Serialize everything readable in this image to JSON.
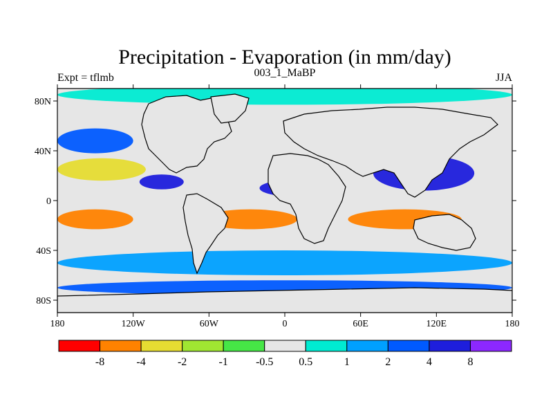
{
  "figure": {
    "title": "Precipitation - Evaporation (in mm/day)",
    "subtitle_left": "Expt = tflmb",
    "subtitle_center": "003_1_MaBP",
    "subtitle_right": "JJA"
  },
  "map": {
    "projection": "cylindrical equidistant",
    "lon_range": [
      -180,
      180
    ],
    "lat_range": [
      -90,
      90
    ],
    "y_ticks": [
      {
        "lat": 80,
        "label": "80N"
      },
      {
        "lat": 40,
        "label": "40N"
      },
      {
        "lat": 0,
        "label": "0"
      },
      {
        "lat": -40,
        "label": "40S"
      },
      {
        "lat": -80,
        "label": "80S"
      }
    ],
    "x_ticks": [
      {
        "lon": -180,
        "label": "180"
      },
      {
        "lon": -120,
        "label": "120W"
      },
      {
        "lon": -60,
        "label": "60W"
      },
      {
        "lon": 0,
        "label": "0"
      },
      {
        "lon": 60,
        "label": "60E"
      },
      {
        "lon": 120,
        "label": "120E"
      },
      {
        "lon": 180,
        "label": "180"
      }
    ]
  },
  "colorbar": {
    "colors": [
      "#ff0000",
      "#ff8200",
      "#e6dc32",
      "#a0e632",
      "#46e646",
      "#e6e6e6",
      "#00ebd2",
      "#00a0ff",
      "#005aff",
      "#1e1edc",
      "#8c28ff"
    ],
    "labels": [
      "-8",
      "-4",
      "-2",
      "-1",
      "-0.5",
      "0.5",
      "1",
      "2",
      "4",
      "8"
    ]
  },
  "chart_data": {
    "type": "heatmap",
    "title": "Precipitation - Evaporation (in mm/day)",
    "subtitle_left": "Expt = tflmb",
    "subtitle_center": "003_1_MaBP",
    "subtitle_right": "JJA",
    "xlabel": "",
    "ylabel": "",
    "x_range": [
      -180,
      180
    ],
    "y_range": [
      -90,
      90
    ],
    "levels": [
      -8,
      -4,
      -2,
      -1,
      -0.5,
      0.5,
      1,
      2,
      4,
      8
    ],
    "bands": [
      {
        "lat_center": 85,
        "lat_halfwidth": 8,
        "value": 0.8,
        "lon_range": [
          -180,
          180
        ]
      },
      {
        "lat_center": 48,
        "lat_halfwidth": 10,
        "value": 2.5,
        "lon_range": [
          -180,
          -120
        ]
      },
      {
        "lat_center": 25,
        "lat_halfwidth": 9,
        "value": -3.5,
        "lon_range": [
          -180,
          -110
        ]
      },
      {
        "lat_center": 15,
        "lat_halfwidth": 6,
        "value": 5,
        "lon_range": [
          -115,
          -80
        ]
      },
      {
        "lat_center": 10,
        "lat_halfwidth": 7,
        "value": 5,
        "lon_range": [
          -20,
          40
        ]
      },
      {
        "lat_center": 22,
        "lat_halfwidth": 14,
        "value": 6,
        "lon_range": [
          70,
          150
        ]
      },
      {
        "lat_center": -15,
        "lat_halfwidth": 8,
        "value": -4.5,
        "lon_range": [
          -180,
          -120
        ]
      },
      {
        "lat_center": -15,
        "lat_halfwidth": 8,
        "value": -4.5,
        "lon_range": [
          -65,
          10
        ]
      },
      {
        "lat_center": -15,
        "lat_halfwidth": 8,
        "value": -4.5,
        "lon_range": [
          50,
          140
        ]
      },
      {
        "lat_center": -50,
        "lat_halfwidth": 10,
        "value": 1.5,
        "lon_range": [
          -180,
          180
        ]
      },
      {
        "lat_center": -70,
        "lat_halfwidth": 6,
        "value": 2.5,
        "lon_range": [
          -180,
          180
        ]
      }
    ]
  }
}
